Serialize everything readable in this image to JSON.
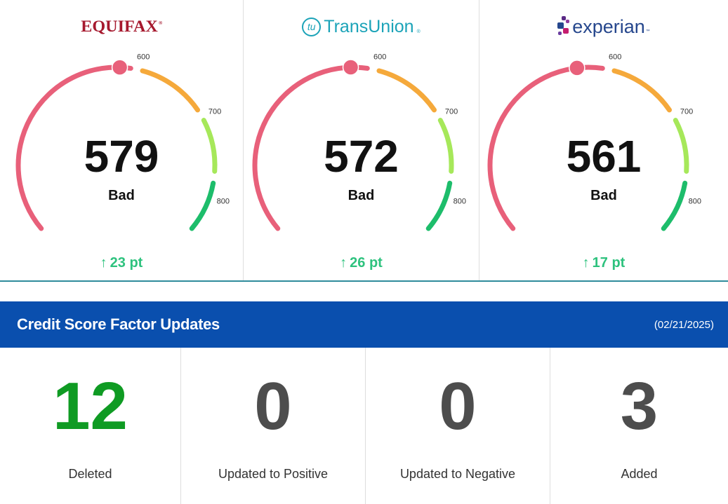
{
  "bureaus": [
    {
      "name": "Equifax",
      "logo_text": "EQUIFAX",
      "score": "579",
      "score_value": 579,
      "rating": "Bad",
      "change": "23 pt",
      "ticks": [
        "600",
        "700",
        "800"
      ]
    },
    {
      "name": "TransUnion",
      "logo_text": "TransUnion",
      "logo_mark": "tu",
      "score": "572",
      "score_value": 572,
      "rating": "Bad",
      "change": "26 pt",
      "ticks": [
        "600",
        "700",
        "800"
      ]
    },
    {
      "name": "Experian",
      "logo_text": "experian",
      "score": "561",
      "score_value": 561,
      "rating": "Bad",
      "change": "17 pt",
      "ticks": [
        "600",
        "700",
        "800"
      ]
    }
  ],
  "gauge_colors": {
    "bad": "#e8607a",
    "fair": "#f5a93b",
    "good": "#a6e85a",
    "excellent": "#1dbd6b"
  },
  "factor_updates": {
    "title": "Credit Score Factor Updates",
    "date": "(02/21/2025)",
    "items": [
      {
        "count": "12",
        "label": "Deleted"
      },
      {
        "count": "0",
        "label": "Updated to Positive"
      },
      {
        "count": "0",
        "label": "Updated to Negative"
      },
      {
        "count": "3",
        "label": "Added"
      }
    ]
  },
  "colors": {
    "header_bg": "#0a4fae",
    "change_green": "#2ec27e",
    "deleted_green": "#0f9b23",
    "count_gray": "#4d4d4d"
  },
  "icons": {
    "change": "arrow-up-icon"
  }
}
